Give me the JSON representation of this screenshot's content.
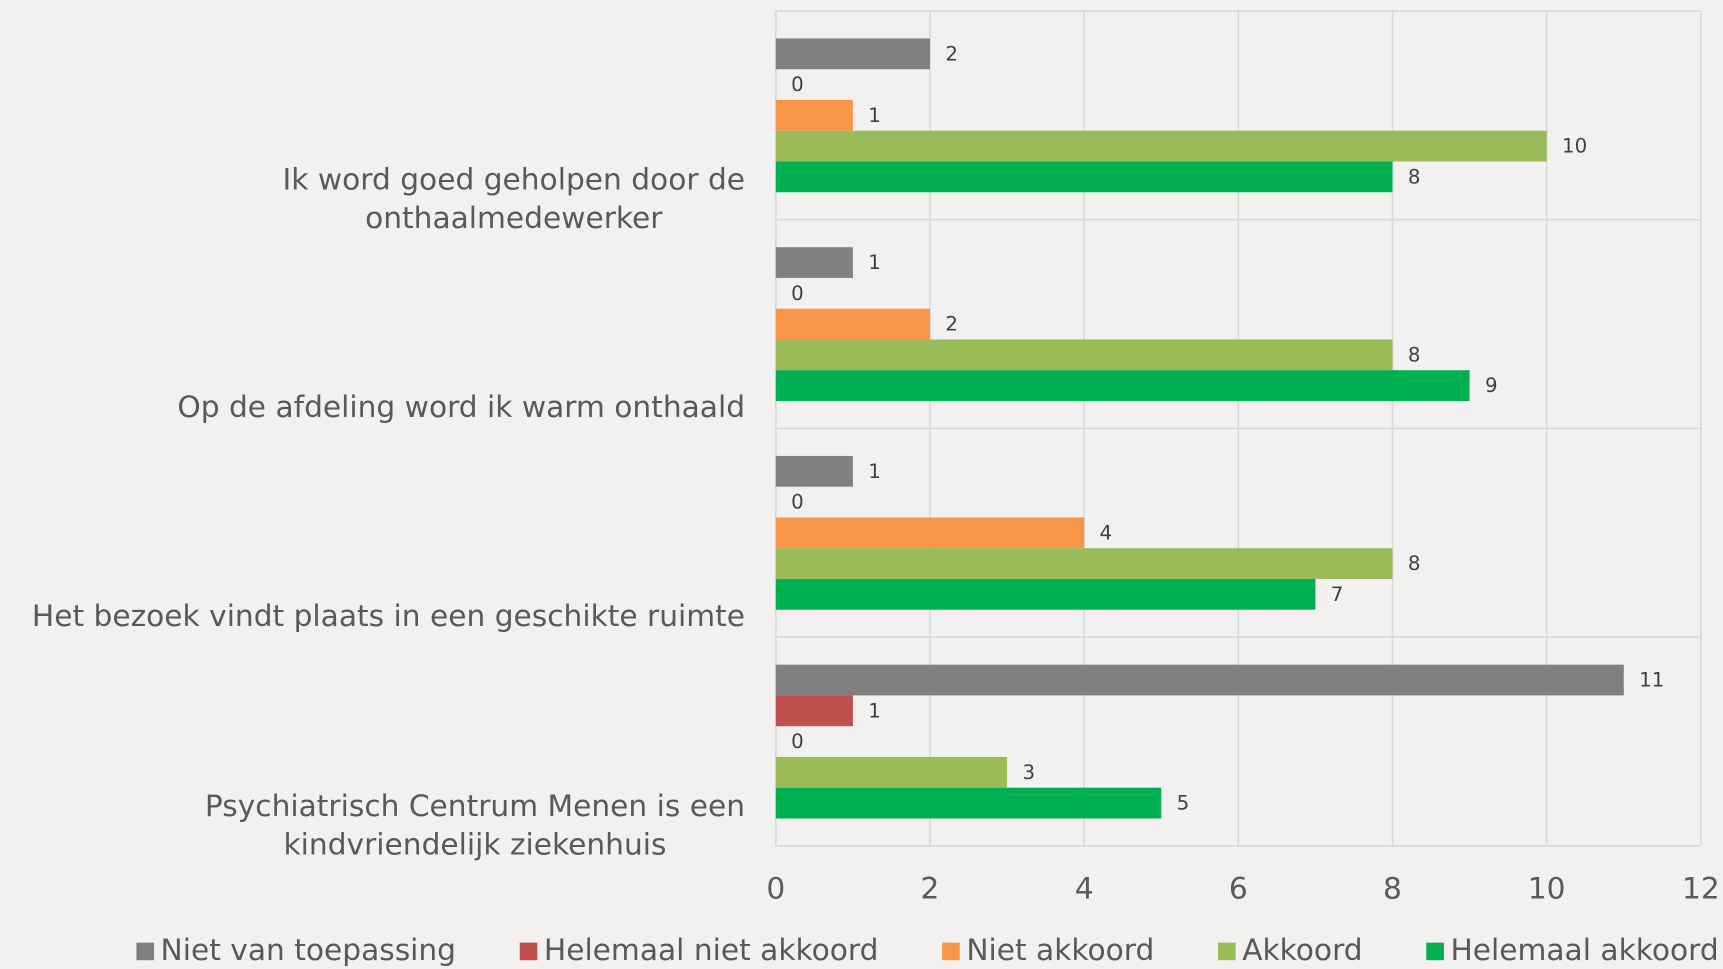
{
  "chart_data": {
    "type": "barh",
    "categories": [
      "Ik word goed geholpen door de onthaalmedewerker",
      "Op de afdeling word ik warm onthaald",
      "Het bezoek vindt plaats in een geschikte ruimte",
      "Psychiatrisch Centrum Menen is een kindvriendelijk ziekenhuis"
    ],
    "series": [
      {
        "name": "Niet van toepassing",
        "color": "#808080",
        "values": [
          2,
          1,
          1,
          11
        ]
      },
      {
        "name": "Helemaal niet akkoord",
        "color": "#c0504d",
        "values": [
          0,
          0,
          0,
          1
        ]
      },
      {
        "name": "Niet akkoord",
        "color": "#f79646",
        "values": [
          1,
          2,
          4,
          0
        ]
      },
      {
        "name": "Akkoord",
        "color": "#9bbb59",
        "values": [
          10,
          8,
          8,
          3
        ]
      },
      {
        "name": "Helemaal akkoord",
        "color": "#00b050",
        "values": [
          8,
          9,
          7,
          5
        ]
      }
    ],
    "xlim": [
      0,
      12
    ],
    "xticks": [
      0,
      2,
      4,
      6,
      8,
      10,
      12
    ],
    "grid": true,
    "legend": "bottom"
  }
}
